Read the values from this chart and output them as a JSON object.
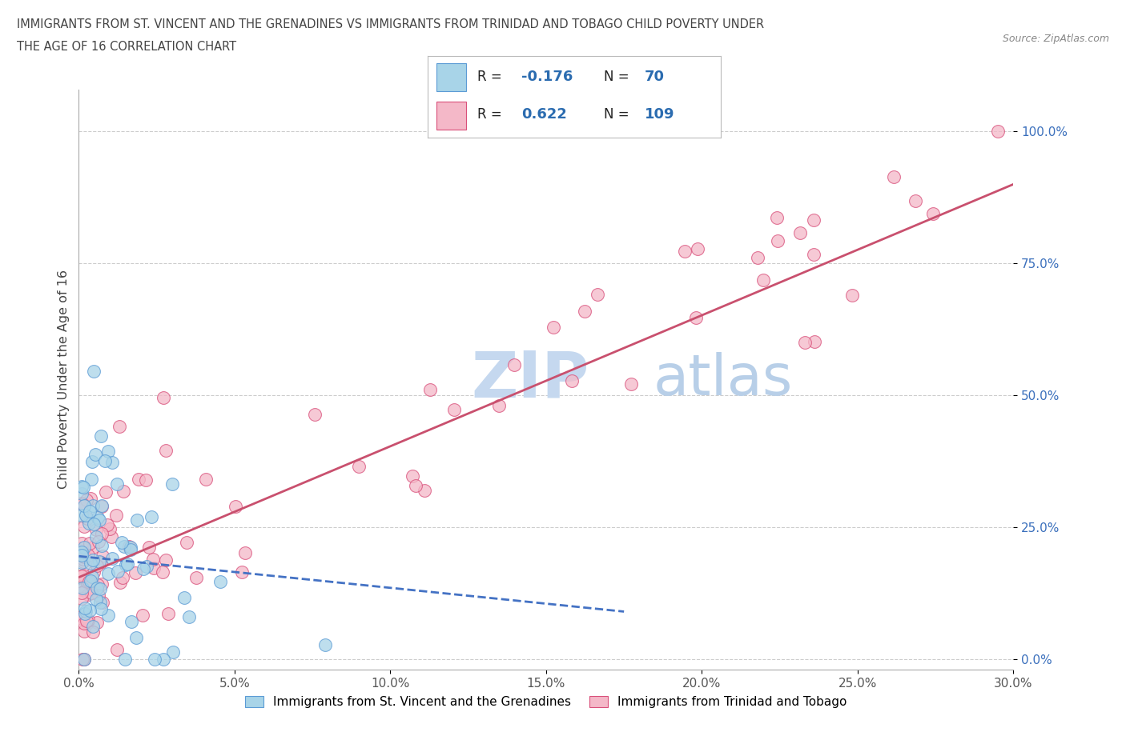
{
  "title_line1": "IMMIGRANTS FROM ST. VINCENT AND THE GRENADINES VS IMMIGRANTS FROM TRINIDAD AND TOBAGO CHILD POVERTY UNDER",
  "title_line2": "THE AGE OF 16 CORRELATION CHART",
  "source": "Source: ZipAtlas.com",
  "ylabel": "Child Poverty Under the Age of 16",
  "legend_label1": "Immigrants from St. Vincent and the Grenadines",
  "legend_label2": "Immigrants from Trinidad and Tobago",
  "R1": -0.176,
  "N1": 70,
  "R2": 0.622,
  "N2": 109,
  "color1": "#a8d4e8",
  "color2": "#f4b8c8",
  "edgecolor1": "#5b9bd5",
  "edgecolor2": "#d94f7a",
  "trendline1_color": "#4472c4",
  "trendline2_color": "#c9506e",
  "xlim": [
    0.0,
    0.3
  ],
  "ylim": [
    -0.02,
    1.08
  ],
  "xticks": [
    0.0,
    0.05,
    0.1,
    0.15,
    0.2,
    0.25,
    0.3
  ],
  "xticklabels": [
    "0.0%",
    "5.0%",
    "10.0%",
    "15.0%",
    "20.0%",
    "25.0%",
    "30.0%"
  ],
  "yticks": [
    0.0,
    0.25,
    0.5,
    0.75,
    1.0
  ],
  "yticklabels": [
    "0.0%",
    "25.0%",
    "50.0%",
    "75.0%",
    "100.0%"
  ],
  "watermark_zip": "ZIP",
  "watermark_atlas": "atlas",
  "watermark_color_zip": "#c5d8ef",
  "watermark_color_atlas": "#b8cfe8",
  "background_color": "#ffffff",
  "trendline1_x": [
    0.0,
    0.175
  ],
  "trendline1_y": [
    0.195,
    0.09
  ],
  "trendline2_x": [
    0.0,
    0.3
  ],
  "trendline2_y": [
    0.155,
    0.9
  ]
}
